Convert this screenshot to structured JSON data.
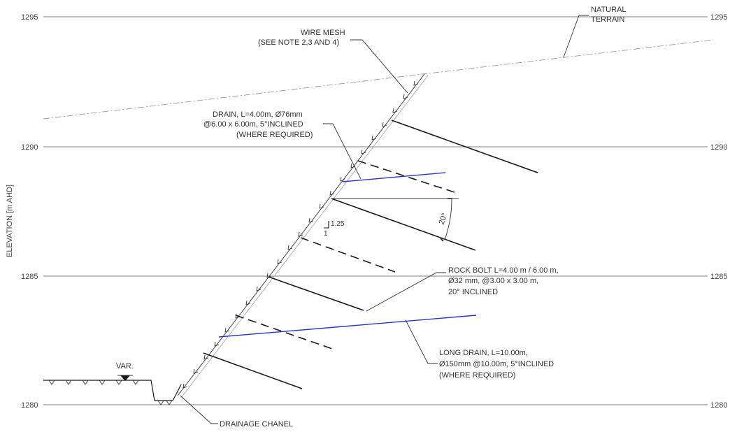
{
  "elevation_axis": {
    "label": "ELEVATION [m AHD]",
    "ticks": [
      "1295",
      "1290",
      "1285",
      "1280"
    ]
  },
  "labels": {
    "natural_terrain": [
      "NATURAL",
      "TERRAIN"
    ],
    "wire_mesh": [
      "WIRE MESH",
      "(SEE NOTE 2,3 AND 4)"
    ],
    "drain": [
      "DRAIN, L=4.00m, Ø76mm",
      "@6.00 x 6.00m, 5°INCLINED",
      "(WHERE REQUIRED)"
    ],
    "rock_bolt": [
      "ROCK BOLT L=4.00 m / 6.00 m,",
      "Ø32 mm, @3.00 x 3.00 m,",
      "20° INCLINED"
    ],
    "long_drain": [
      "LONG DRAIN, L=10.00m,",
      "Ø150mm @10.00m, 5°INCLINED",
      "(WHERE REQUIRED)"
    ],
    "drainage_channel": "DRAINAGE CHANEL",
    "var": "VAR.",
    "slope_rise": "1.25",
    "slope_run": "1",
    "angle": "20°"
  },
  "colors": {
    "drain_lines": "#2a35c8",
    "terrain_line": "#9a9a9a",
    "elements": "#1a1a1a"
  }
}
